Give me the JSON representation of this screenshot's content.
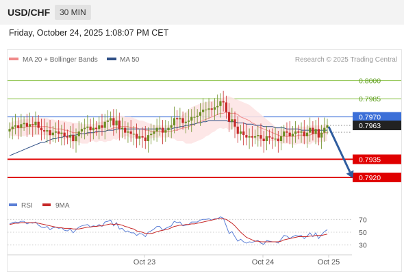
{
  "header": {
    "pair": "USD/CHF",
    "timeframe": "30 MIN"
  },
  "timestamp": "Friday, October 24, 2025 1:08:07 PM CET",
  "legend": {
    "bollinger": "MA 20 + Bollinger Bands",
    "ma50": "MA 50",
    "rsi": "RSI",
    "ma9": "9MA"
  },
  "credit": "Research © 2025 Trading Central",
  "colors": {
    "bollinger": "#f08a8a",
    "band_fill": "#fde3e3",
    "ma50": "#2f4f86",
    "bull": "#6b8e23",
    "bear": "#c62828",
    "resistance": "#8bc34a",
    "current": "#3b6fd8",
    "support": "#e00000",
    "arrow": "#2e5c9e",
    "rsi": "#5b7fd6"
  },
  "chart_data": [
    {
      "type": "candlestick",
      "y_range": [
        0.7907,
        0.801
      ],
      "x_labels": [
        "Oct 23",
        "Oct 24",
        "Oct 25"
      ],
      "levels": [
        {
          "label": "0.8000",
          "value": 0.8,
          "kind": "resistance"
        },
        {
          "label": "0.7985",
          "value": 0.7985,
          "kind": "resistance"
        },
        {
          "label": "0.7970",
          "value": 0.797,
          "kind": "current"
        },
        {
          "label": "0.7963",
          "value": 0.7963,
          "kind": "last"
        },
        {
          "label": "0.7935",
          "value": 0.7935,
          "kind": "support"
        },
        {
          "label": "0.7920",
          "value": 0.792,
          "kind": "support"
        }
      ],
      "close": [
        0.796,
        0.7962,
        0.7963,
        0.7961,
        0.7964,
        0.7965,
        0.7962,
        0.7964,
        0.7963,
        0.7966,
        0.7961,
        0.7959,
        0.7958,
        0.7959,
        0.7955,
        0.7957,
        0.7958,
        0.7956,
        0.7957,
        0.7954,
        0.7953,
        0.7955,
        0.795,
        0.7954,
        0.7958,
        0.796,
        0.7961,
        0.7962,
        0.7959,
        0.7961,
        0.796,
        0.7963,
        0.7961,
        0.7966,
        0.7967,
        0.7969,
        0.7963,
        0.7967,
        0.796,
        0.7961,
        0.7957,
        0.7958,
        0.7956,
        0.7956,
        0.7952,
        0.7954,
        0.7953,
        0.795,
        0.7955,
        0.7956,
        0.7958,
        0.7961,
        0.7961,
        0.7957,
        0.7959,
        0.7961,
        0.7963,
        0.7969,
        0.7968,
        0.7969,
        0.7965,
        0.7966,
        0.7967,
        0.797,
        0.797,
        0.7971,
        0.7974,
        0.7976,
        0.7976,
        0.7977,
        0.7976,
        0.7978,
        0.7979,
        0.7983,
        0.7982,
        0.7974,
        0.7966,
        0.7968,
        0.7962,
        0.7956,
        0.7958,
        0.7955,
        0.7953,
        0.7954,
        0.7953,
        0.7954,
        0.7955,
        0.7952,
        0.795,
        0.7954,
        0.7953,
        0.7952,
        0.7952,
        0.795,
        0.7954,
        0.7958,
        0.7957,
        0.7954,
        0.7956,
        0.7958,
        0.7957,
        0.7958,
        0.7954,
        0.7957,
        0.7961,
        0.7956,
        0.796,
        0.7953,
        0.7957,
        0.7961,
        0.7963
      ],
      "ma20": [
        0.796,
        0.796,
        0.7961,
        0.7961,
        0.7961,
        0.7961,
        0.7962,
        0.7962,
        0.7962,
        0.7962,
        0.7962,
        0.7962,
        0.7962,
        0.7962,
        0.7961,
        0.7961,
        0.796,
        0.796,
        0.796,
        0.7959,
        0.7959,
        0.7958,
        0.7957,
        0.7957,
        0.7957,
        0.7956,
        0.7956,
        0.7956,
        0.7957,
        0.7957,
        0.7957,
        0.7958,
        0.7958,
        0.7958,
        0.7959,
        0.796,
        0.7961,
        0.7961,
        0.7962,
        0.7962,
        0.7962,
        0.7962,
        0.7961,
        0.7961,
        0.7961,
        0.796,
        0.796,
        0.7959,
        0.7959,
        0.7958,
        0.7958,
        0.7958,
        0.7958,
        0.7958,
        0.7958,
        0.7958,
        0.7958,
        0.7959,
        0.7959,
        0.796,
        0.7961,
        0.7961,
        0.7962,
        0.7963,
        0.7964,
        0.7965,
        0.7966,
        0.7967,
        0.7968,
        0.7969,
        0.797,
        0.7971,
        0.7972,
        0.7973,
        0.7973,
        0.7974,
        0.7973,
        0.7973,
        0.7973,
        0.7972,
        0.797,
        0.7969,
        0.7968,
        0.7967,
        0.7965,
        0.7964,
        0.7962,
        0.7961,
        0.796,
        0.7959,
        0.7958,
        0.7957,
        0.7956,
        0.7955,
        0.7954,
        0.7954,
        0.7954,
        0.7954,
        0.7954,
        0.7954,
        0.7955,
        0.7955,
        0.7955,
        0.7955,
        0.7955,
        0.7956,
        0.7956,
        0.7956,
        0.7956,
        0.7957,
        0.7957
      ],
      "band_upper": [
        0.7965,
        0.7966,
        0.7967,
        0.7967,
        0.7968,
        0.7968,
        0.7968,
        0.7969,
        0.7969,
        0.7969,
        0.7969,
        0.7969,
        0.7969,
        0.7969,
        0.7968,
        0.7968,
        0.7967,
        0.7967,
        0.7967,
        0.7967,
        0.7966,
        0.7966,
        0.7965,
        0.7965,
        0.7965,
        0.7964,
        0.7964,
        0.7964,
        0.7964,
        0.7964,
        0.7965,
        0.7966,
        0.7966,
        0.7967,
        0.7968,
        0.797,
        0.797,
        0.7971,
        0.7971,
        0.7971,
        0.797,
        0.797,
        0.797,
        0.7969,
        0.7968,
        0.7967,
        0.7967,
        0.7966,
        0.7965,
        0.7964,
        0.7963,
        0.7963,
        0.7963,
        0.7963,
        0.7963,
        0.7963,
        0.7964,
        0.7966,
        0.7968,
        0.797,
        0.7972,
        0.7974,
        0.7976,
        0.7978,
        0.7979,
        0.798,
        0.7981,
        0.7982,
        0.7982,
        0.7983,
        0.7983,
        0.7984,
        0.7984,
        0.7985,
        0.7986,
        0.7987,
        0.7987,
        0.7986,
        0.7985,
        0.7984,
        0.7983,
        0.7982,
        0.7981,
        0.798,
        0.7978,
        0.7976,
        0.7974,
        0.7972,
        0.797,
        0.7968,
        0.7966,
        0.7964,
        0.7962,
        0.7961,
        0.796,
        0.796,
        0.796,
        0.796,
        0.7961,
        0.7961,
        0.7962,
        0.7962,
        0.7962,
        0.7962,
        0.7963,
        0.7963,
        0.7963,
        0.7963,
        0.7963,
        0.7964,
        0.7964
      ],
      "band_lower": [
        0.7955,
        0.7954,
        0.7954,
        0.7954,
        0.7954,
        0.7954,
        0.7955,
        0.7955,
        0.7955,
        0.7955,
        0.7955,
        0.7955,
        0.7955,
        0.7955,
        0.7954,
        0.7954,
        0.7953,
        0.7953,
        0.7953,
        0.7951,
        0.7952,
        0.795,
        0.7949,
        0.7949,
        0.7949,
        0.7948,
        0.7948,
        0.7948,
        0.795,
        0.795,
        0.7949,
        0.795,
        0.795,
        0.7949,
        0.795,
        0.795,
        0.7952,
        0.7951,
        0.7953,
        0.7953,
        0.7954,
        0.7954,
        0.7952,
        0.7953,
        0.7954,
        0.7953,
        0.7953,
        0.7952,
        0.7953,
        0.7952,
        0.7953,
        0.7953,
        0.7953,
        0.7953,
        0.7953,
        0.7953,
        0.7952,
        0.7952,
        0.795,
        0.795,
        0.795,
        0.7948,
        0.7948,
        0.7948,
        0.7949,
        0.795,
        0.7951,
        0.7952,
        0.7954,
        0.7955,
        0.7957,
        0.7958,
        0.796,
        0.7961,
        0.796,
        0.7961,
        0.7959,
        0.796,
        0.7961,
        0.796,
        0.7957,
        0.7956,
        0.7955,
        0.7954,
        0.7952,
        0.7952,
        0.795,
        0.795,
        0.795,
        0.795,
        0.795,
        0.795,
        0.795,
        0.7949,
        0.7948,
        0.7948,
        0.7948,
        0.7948,
        0.7947,
        0.7947,
        0.7948,
        0.7948,
        0.7948,
        0.7948,
        0.7947,
        0.7949,
        0.7949,
        0.7949,
        0.7949,
        0.795,
        0.795
      ],
      "ma50": [
        0.7938,
        0.7939,
        0.794,
        0.7941,
        0.7942,
        0.7943,
        0.7944,
        0.7945,
        0.7946,
        0.7947,
        0.7948,
        0.7949,
        0.7949,
        0.795,
        0.7951,
        0.7952,
        0.7952,
        0.7953,
        0.7953,
        0.7954,
        0.7954,
        0.7955,
        0.7955,
        0.7955,
        0.7956,
        0.7956,
        0.7956,
        0.7957,
        0.7957,
        0.7957,
        0.7958,
        0.7958,
        0.7958,
        0.7958,
        0.7959,
        0.7959,
        0.7959,
        0.796,
        0.796,
        0.796,
        0.796,
        0.796,
        0.796,
        0.796,
        0.796,
        0.796,
        0.796,
        0.796,
        0.796,
        0.796,
        0.796,
        0.796,
        0.796,
        0.796,
        0.796,
        0.796,
        0.796,
        0.7961,
        0.7961,
        0.7962,
        0.7962,
        0.7963,
        0.7963,
        0.7964,
        0.7964,
        0.7965,
        0.7965,
        0.7966,
        0.7966,
        0.7967,
        0.7967,
        0.7967,
        0.7967,
        0.7967,
        0.7967,
        0.7967,
        0.7966,
        0.7966,
        0.7966,
        0.7965,
        0.7965,
        0.7965,
        0.7964,
        0.7964,
        0.7964,
        0.7963,
        0.7963,
        0.7963,
        0.7962,
        0.7962,
        0.7962,
        0.7962,
        0.7961,
        0.7961,
        0.7961,
        0.7961,
        0.796,
        0.796,
        0.796,
        0.796,
        0.796,
        0.7959,
        0.7959,
        0.7959,
        0.7959,
        0.7959,
        0.7959,
        0.7959,
        0.7959,
        0.7959,
        0.7959
      ],
      "forecast": {
        "from": 0.7963,
        "to": 0.792
      }
    },
    {
      "type": "line",
      "name": "RSI",
      "y_ticks": [
        70,
        50,
        30
      ],
      "y_range": [
        20,
        80
      ],
      "rsi": [
        63,
        65,
        66,
        65,
        67,
        67,
        63,
        65,
        64,
        66,
        61,
        58,
        57,
        59,
        54,
        57,
        58,
        56,
        57,
        53,
        52,
        55,
        49,
        54,
        58,
        60,
        61,
        62,
        58,
        60,
        59,
        62,
        59,
        66,
        67,
        69,
        60,
        65,
        55,
        56,
        51,
        52,
        49,
        49,
        45,
        48,
        47,
        43,
        50,
        52,
        55,
        59,
        59,
        53,
        56,
        58,
        60,
        67,
        65,
        66,
        60,
        61,
        62,
        66,
        66,
        66,
        69,
        70,
        70,
        71,
        69,
        71,
        71,
        74,
        72,
        60,
        48,
        51,
        43,
        36,
        39,
        35,
        33,
        35,
        34,
        36,
        37,
        33,
        31,
        37,
        36,
        35,
        35,
        33,
        39,
        45,
        44,
        40,
        43,
        45,
        44,
        45,
        40,
        44,
        49,
        43,
        49,
        40,
        46,
        51,
        54
      ],
      "ma9": [
        62,
        63,
        64,
        64,
        65,
        65,
        65,
        65,
        65,
        65,
        64,
        63,
        62,
        61,
        60,
        59,
        58,
        57,
        57,
        56,
        56,
        56,
        55,
        55,
        55,
        56,
        57,
        58,
        58,
        59,
        59,
        60,
        60,
        61,
        62,
        63,
        62,
        63,
        62,
        61,
        59,
        58,
        56,
        55,
        52,
        51,
        50,
        48,
        48,
        48,
        49,
        51,
        52,
        53,
        54,
        55,
        57,
        59,
        60,
        61,
        61,
        62,
        62,
        63,
        63,
        64,
        65,
        66,
        67,
        68,
        69,
        70,
        71,
        71,
        71,
        70,
        67,
        64,
        60,
        55,
        50,
        46,
        42,
        40,
        38,
        36,
        36,
        35,
        35,
        35,
        35,
        35,
        35,
        35,
        36,
        38,
        39,
        40,
        41,
        42,
        43,
        43,
        43,
        43,
        44,
        44,
        45,
        45,
        45,
        46,
        47
      ]
    }
  ]
}
